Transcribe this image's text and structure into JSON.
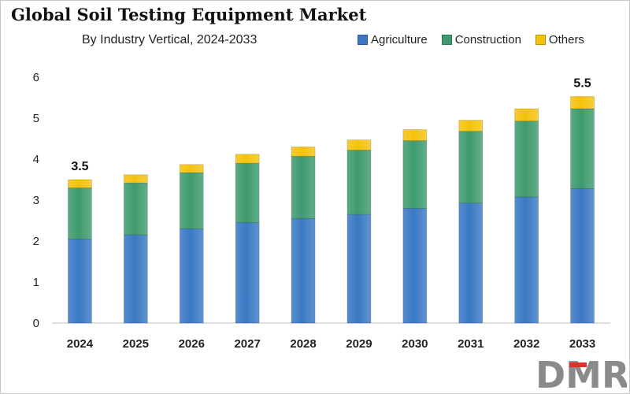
{
  "chart_data": {
    "type": "bar",
    "stacked": true,
    "title": "Global Soil Testing Equipment Market",
    "subtitle": "By Industry Vertical, 2024-2033",
    "xlabel": "",
    "ylabel": "",
    "categories": [
      "2024",
      "2025",
      "2026",
      "2027",
      "2028",
      "2029",
      "2030",
      "2031",
      "2032",
      "2033"
    ],
    "series": [
      {
        "name": "Agriculture",
        "color": "#3a78c4",
        "values": [
          2.05,
          2.15,
          2.3,
          2.45,
          2.55,
          2.65,
          2.8,
          2.93,
          3.08,
          3.28
        ]
      },
      {
        "name": "Construction",
        "color": "#3e9a6e",
        "values": [
          1.25,
          1.27,
          1.37,
          1.45,
          1.52,
          1.57,
          1.65,
          1.75,
          1.85,
          1.95
        ]
      },
      {
        "name": "Others",
        "color": "#f4c20d",
        "values": [
          0.2,
          0.2,
          0.2,
          0.22,
          0.23,
          0.25,
          0.27,
          0.27,
          0.3,
          0.3
        ]
      }
    ],
    "data_labels": [
      {
        "category": "2024",
        "text": "3.5"
      },
      {
        "category": "2033",
        "text": "5.5"
      }
    ],
    "ylim": [
      0,
      6
    ],
    "yticks": [
      0,
      1,
      2,
      3,
      4,
      5,
      6
    ],
    "grid": false,
    "legend_position": "top-right"
  },
  "logo": {
    "text": "DMR"
  }
}
